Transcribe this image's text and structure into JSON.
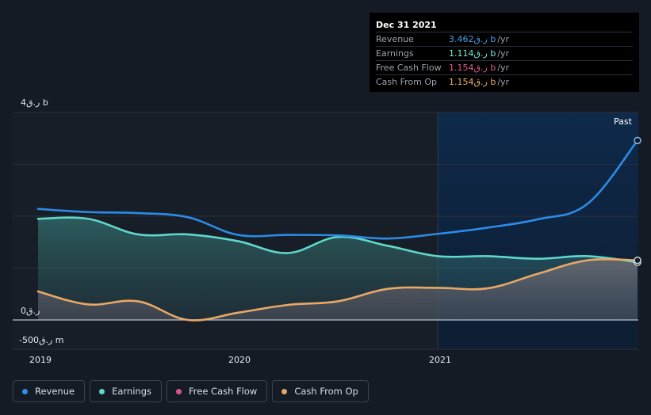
{
  "tooltip": {
    "date": "Dec 31 2021",
    "rows": [
      {
        "label": "Revenue",
        "value": "3.462ر.ق b",
        "unit": "/yr",
        "color": "#4a9fe8"
      },
      {
        "label": "Earnings",
        "value": "1.114ر.ق b",
        "unit": "/yr",
        "color": "#7ee8dc"
      },
      {
        "label": "Free Cash Flow",
        "value": "1.154ر.ق b",
        "unit": "/yr",
        "color": "#e2598f"
      },
      {
        "label": "Cash From Op",
        "value": "1.154ر.ق b",
        "unit": "/yr",
        "color": "#f0b36a"
      }
    ]
  },
  "chart_data": {
    "type": "area",
    "y_tick_labels": {
      "top": "4ر.ق b",
      "zero": "0ر.ق",
      "bottom": "-500ر.ق m"
    },
    "x_tick_labels": [
      "2019",
      "2020",
      "2021"
    ],
    "past_label": "Past",
    "ylim": [
      -0.5,
      4.0
    ],
    "series": [
      {
        "name": "Revenue",
        "color": "#2b8be6",
        "x": [
          2019.0,
          2019.25,
          2019.5,
          2019.75,
          2020.0,
          2020.25,
          2020.5,
          2020.75,
          2021.0,
          2021.25,
          2021.5,
          2021.75,
          2022.0
        ],
        "values": [
          2.14,
          2.08,
          2.06,
          1.98,
          1.64,
          1.64,
          1.63,
          1.57,
          1.66,
          1.78,
          1.94,
          2.24,
          3.46
        ]
      },
      {
        "name": "Earnings",
        "color": "#5fd8cc",
        "x": [
          2019.0,
          2019.25,
          2019.5,
          2019.75,
          2020.0,
          2020.25,
          2020.5,
          2020.75,
          2021.0,
          2021.25,
          2021.5,
          2021.75,
          2022.0
        ],
        "values": [
          1.95,
          1.95,
          1.65,
          1.65,
          1.52,
          1.29,
          1.6,
          1.43,
          1.23,
          1.23,
          1.18,
          1.23,
          1.11
        ]
      },
      {
        "name": "Free Cash Flow",
        "color": "#d5558a",
        "x": [],
        "values": []
      },
      {
        "name": "Cash From Op",
        "color": "#e8a865",
        "x": [
          2019.0,
          2019.25,
          2019.5,
          2019.75,
          2020.0,
          2020.25,
          2020.5,
          2020.75,
          2021.0,
          2021.25,
          2021.5,
          2021.75,
          2022.0
        ],
        "values": [
          0.55,
          0.3,
          0.36,
          0.0,
          0.14,
          0.29,
          0.36,
          0.6,
          0.62,
          0.61,
          0.89,
          1.15,
          1.15
        ]
      }
    ],
    "past_region_start": 2021.0,
    "grid": true
  },
  "legend": [
    {
      "label": "Revenue",
      "color": "#2f8fe8"
    },
    {
      "label": "Earnings",
      "color": "#5fd8cc"
    },
    {
      "label": "Free Cash Flow",
      "color": "#d5558a"
    },
    {
      "label": "Cash From Op",
      "color": "#e8a865"
    }
  ]
}
